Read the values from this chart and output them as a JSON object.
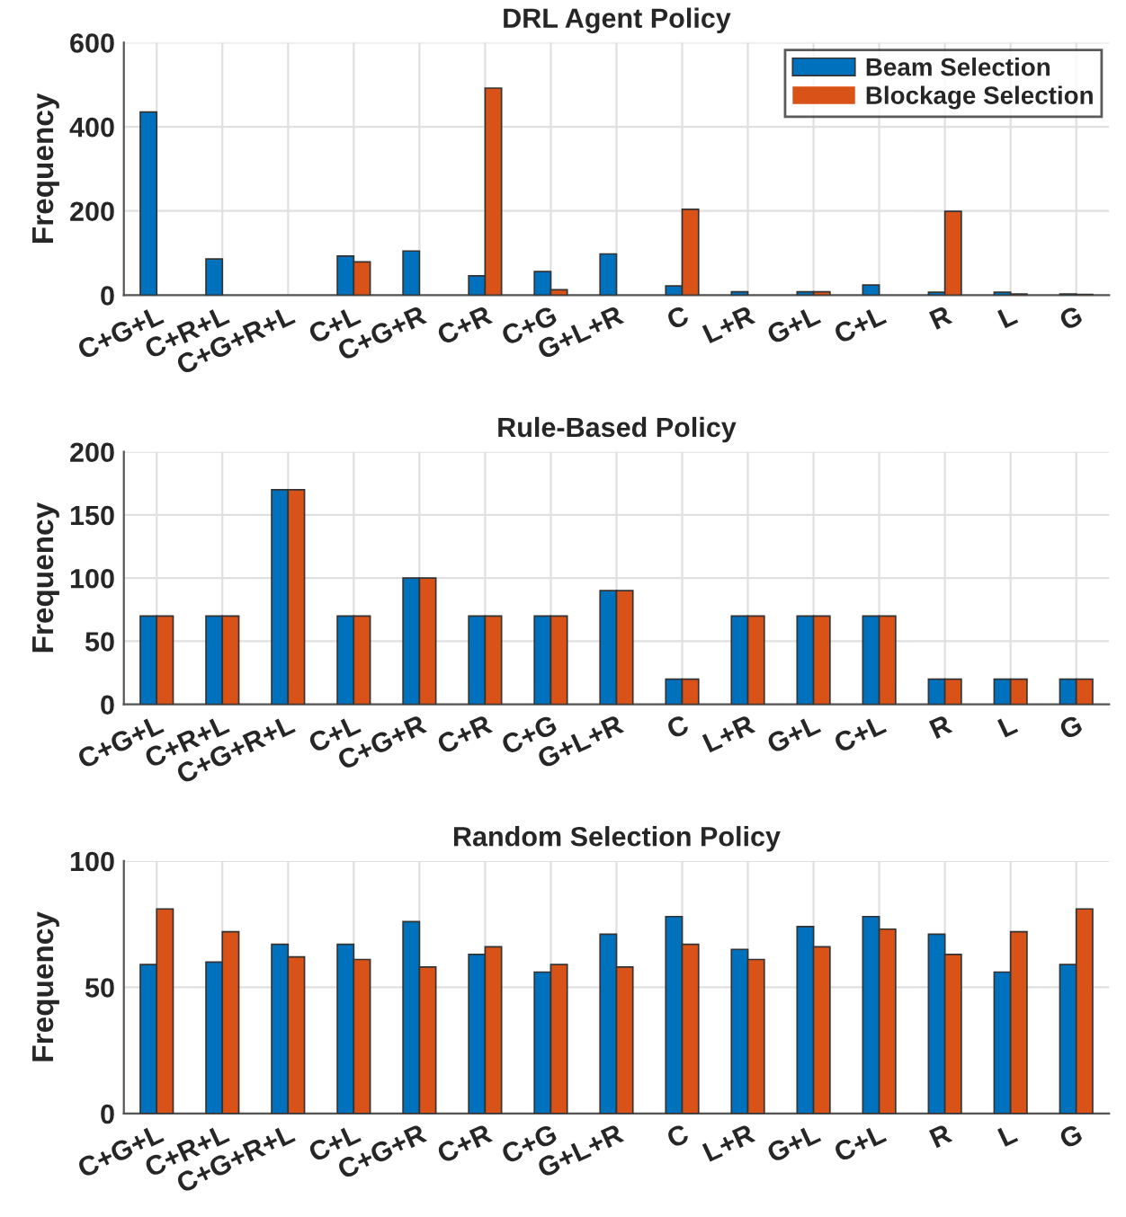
{
  "chart_data": [
    {
      "type": "bar",
      "title": "DRL Agent Policy",
      "ylabel": "Frequency",
      "categories": [
        "C+G+L",
        "C+R+L",
        "C+G+R+L",
        "C+L",
        "C+G+R",
        "C+R",
        "C+G",
        "G+L+R",
        "C",
        "L+R",
        "G+L",
        "C+L",
        "R",
        "L",
        "G"
      ],
      "ylim": [
        0,
        600
      ],
      "yticks": [
        0,
        200,
        400,
        600
      ],
      "grid": true,
      "legend": "top right",
      "series": [
        {
          "name": "Beam Selection",
          "color": "#0072bd",
          "values": [
            435,
            86,
            0,
            93,
            105,
            46,
            56,
            98,
            22,
            8,
            8,
            24,
            7,
            7,
            3
          ]
        },
        {
          "name": "Blockage Selection",
          "color": "#d95319",
          "values": [
            0,
            0,
            0,
            79,
            0,
            492,
            13,
            0,
            204,
            0,
            8,
            0,
            199,
            3,
            2
          ]
        }
      ]
    },
    {
      "type": "bar",
      "title": "Rule-Based Policy",
      "ylabel": "Frequency",
      "categories": [
        "C+G+L",
        "C+R+L",
        "C+G+R+L",
        "C+L",
        "C+G+R",
        "C+R",
        "C+G",
        "G+L+R",
        "C",
        "L+R",
        "G+L",
        "C+L",
        "R",
        "L",
        "G"
      ],
      "ylim": [
        0,
        200
      ],
      "yticks": [
        0,
        50,
        100,
        150,
        200
      ],
      "grid": true,
      "series": [
        {
          "color": "#0072bd",
          "values": [
            70,
            70,
            170,
            70,
            100,
            70,
            70,
            90,
            20,
            70,
            70,
            70,
            20,
            20,
            20
          ]
        },
        {
          "color": "#d95319",
          "values": [
            70,
            70,
            170,
            70,
            100,
            70,
            70,
            90,
            20,
            70,
            70,
            70,
            20,
            20,
            20
          ]
        }
      ]
    },
    {
      "type": "bar",
      "title": "Random Selection Policy",
      "ylabel": "Frequency",
      "categories": [
        "C+G+L",
        "C+R+L",
        "C+G+R+L",
        "C+L",
        "C+G+R",
        "C+R",
        "C+G",
        "G+L+R",
        "C",
        "L+R",
        "G+L",
        "C+L",
        "R",
        "L",
        "G"
      ],
      "ylim": [
        0,
        100
      ],
      "yticks": [
        0,
        50,
        100
      ],
      "grid": true,
      "series": [
        {
          "color": "#0072bd",
          "values": [
            59,
            60,
            67,
            67,
            76,
            63,
            56,
            71,
            78,
            65,
            74,
            78,
            71,
            56,
            59
          ]
        },
        {
          "color": "#d95319",
          "values": [
            81,
            72,
            62,
            61,
            58,
            66,
            59,
            58,
            67,
            61,
            66,
            73,
            63,
            72,
            81
          ]
        }
      ]
    }
  ]
}
